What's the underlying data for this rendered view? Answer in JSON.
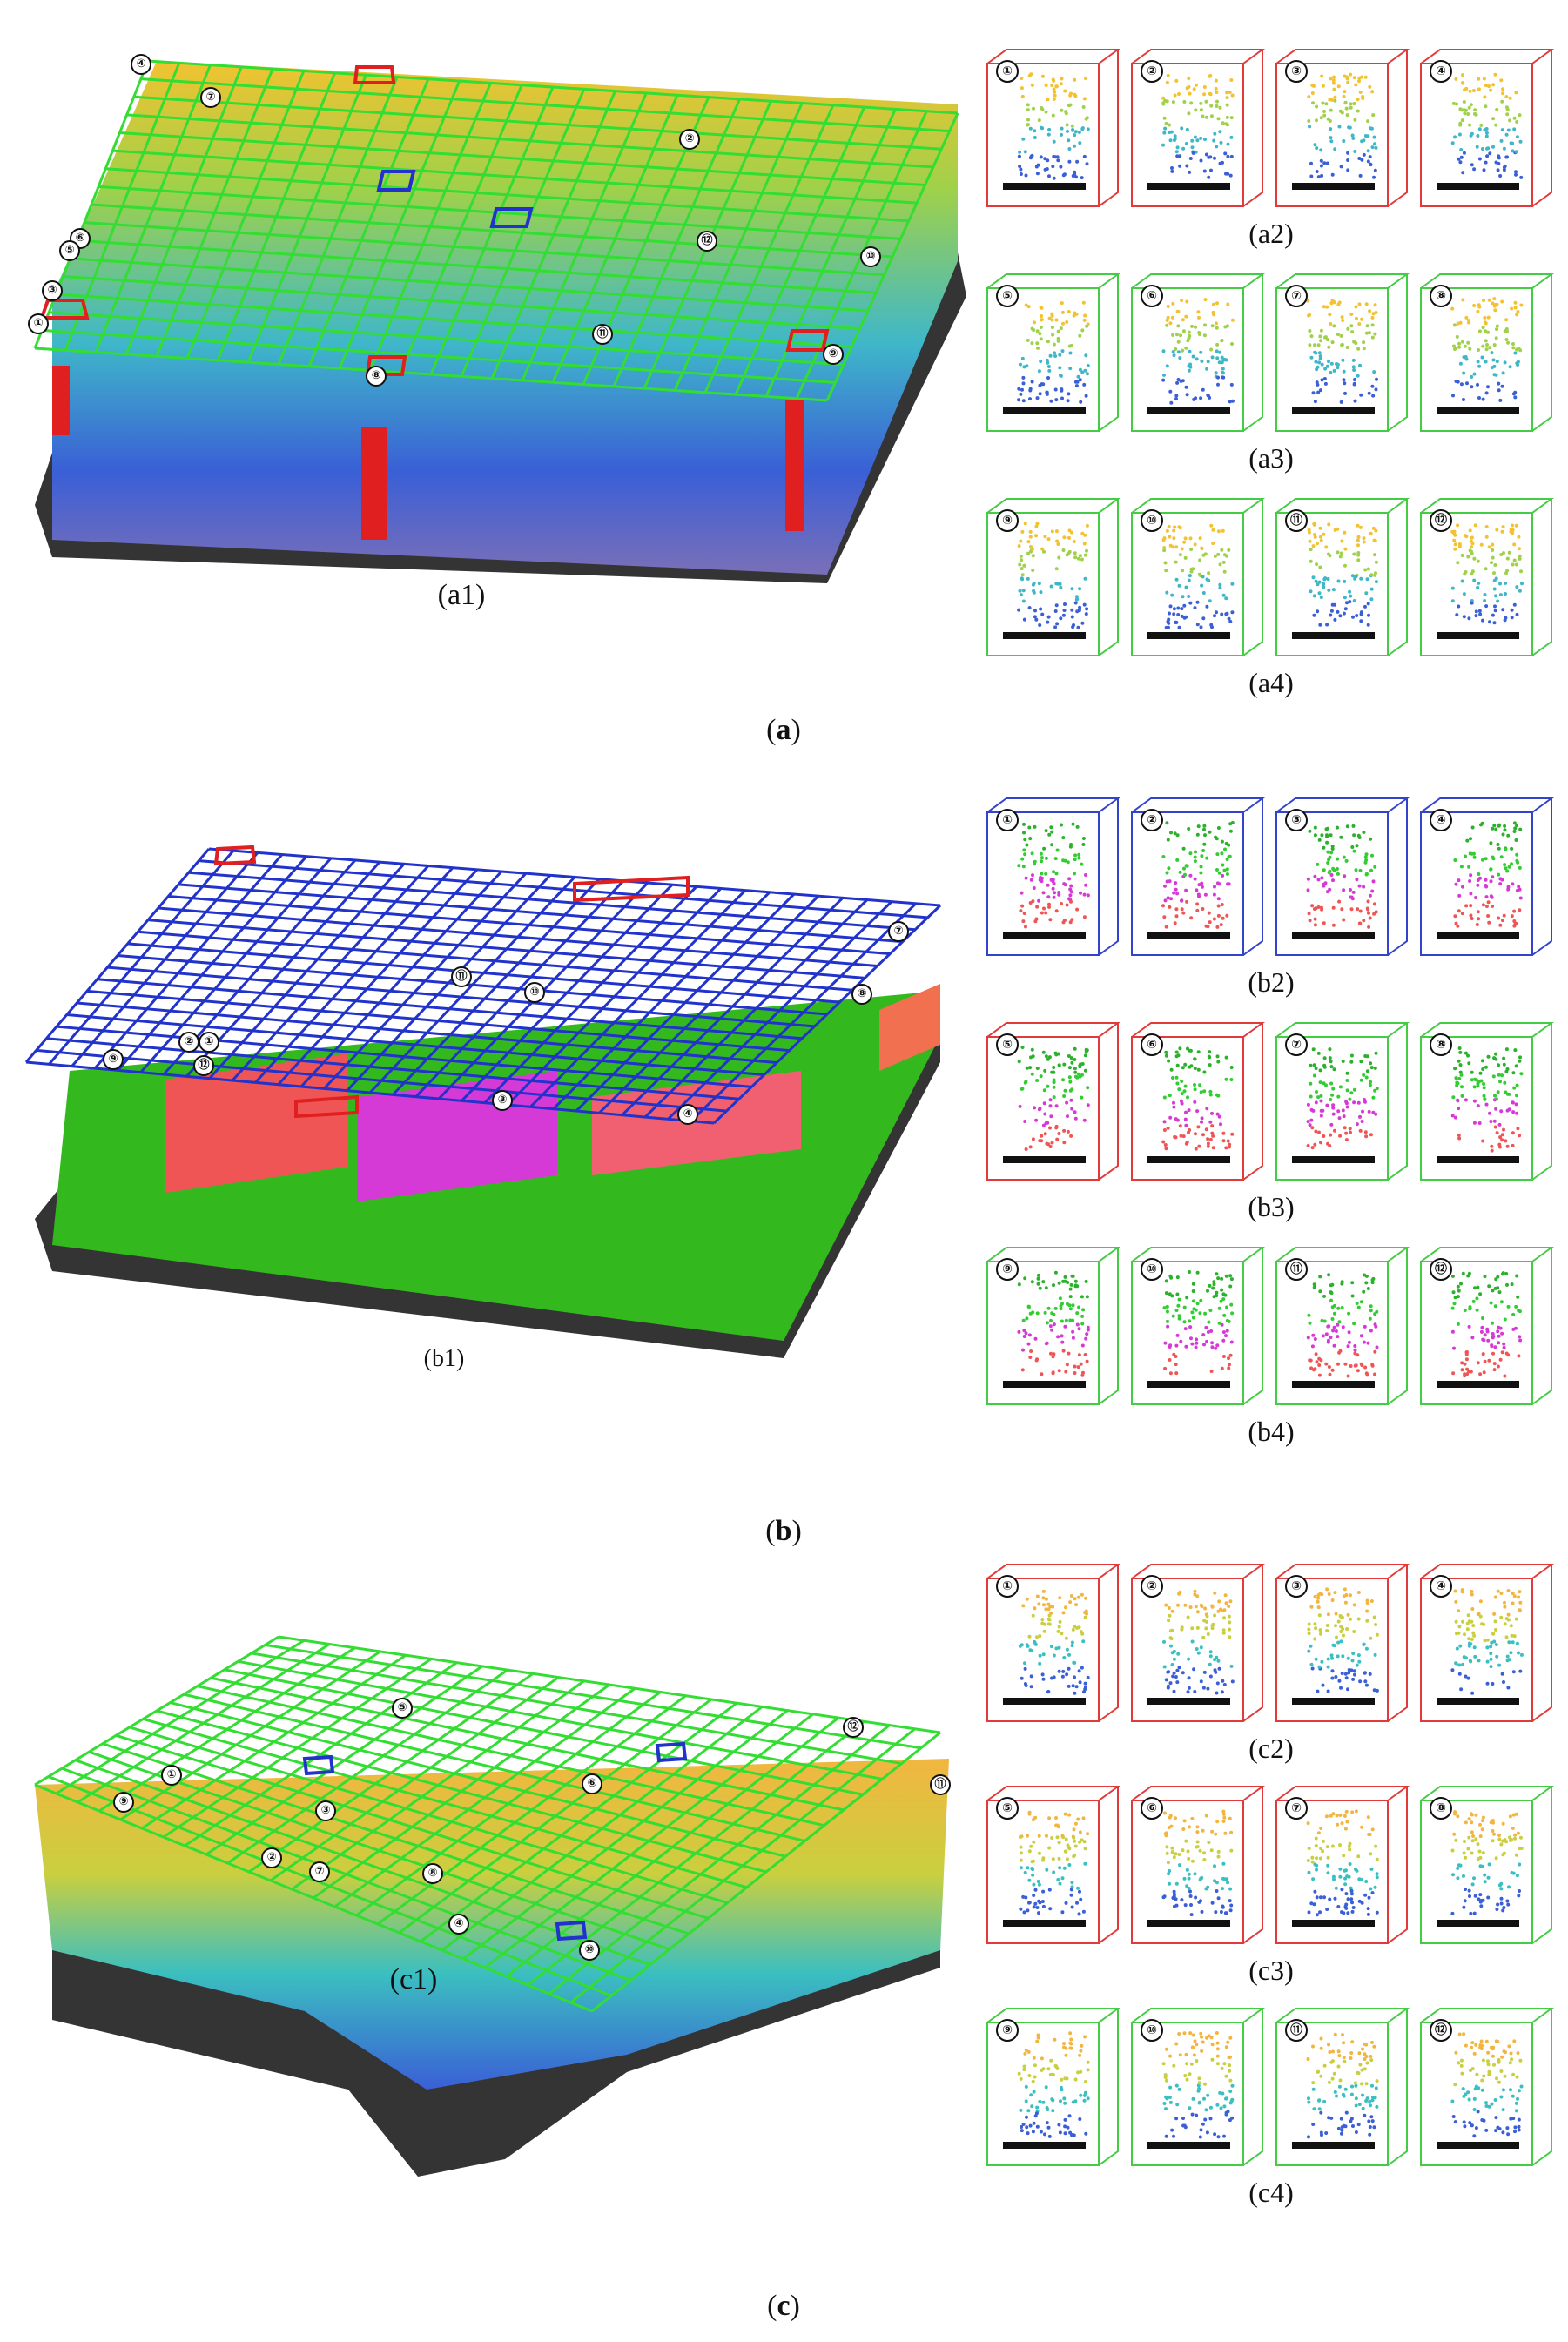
{
  "figure": {
    "panels": [
      {
        "id": "a",
        "label": "a",
        "scene_caption": "(a1)",
        "grid_color": "#33dd33",
        "markers": [
          "④",
          "⑦",
          "②",
          "⑥",
          "⑤",
          "⑫",
          "⑩",
          "③",
          "①",
          "⑪",
          "⑨",
          "⑧"
        ],
        "rows": [
          {
            "caption": "(a2)",
            "boxes": [
              {
                "num": "①",
                "color": "#e23a3a"
              },
              {
                "num": "②",
                "color": "#e23a3a"
              },
              {
                "num": "③",
                "color": "#e23a3a"
              },
              {
                "num": "④",
                "color": "#e23a3a"
              }
            ]
          },
          {
            "caption": "(a3)",
            "boxes": [
              {
                "num": "⑤",
                "color": "#44cc44"
              },
              {
                "num": "⑥",
                "color": "#44cc44"
              },
              {
                "num": "⑦",
                "color": "#44cc44"
              },
              {
                "num": "⑧",
                "color": "#44cc44"
              }
            ]
          },
          {
            "caption": "(a4)",
            "boxes": [
              {
                "num": "⑨",
                "color": "#44cc44"
              },
              {
                "num": "⑩",
                "color": "#44cc44"
              },
              {
                "num": "⑪",
                "color": "#44cc44"
              },
              {
                "num": "⑫",
                "color": "#44cc44"
              }
            ]
          }
        ]
      },
      {
        "id": "b",
        "label": "b",
        "scene_caption": "(b1)",
        "grid_color": "#2233cc",
        "markers": [
          "⑦",
          "⑪",
          "⑩",
          "⑧",
          "⑨",
          "②",
          "①",
          "⑫",
          "③",
          "④"
        ],
        "rows": [
          {
            "caption": "(b2)",
            "boxes": [
              {
                "num": "①",
                "color": "#3344cc"
              },
              {
                "num": "②",
                "color": "#3344cc"
              },
              {
                "num": "③",
                "color": "#3344cc"
              },
              {
                "num": "④",
                "color": "#3344cc"
              }
            ]
          },
          {
            "caption": "(b3)",
            "boxes": [
              {
                "num": "⑤",
                "color": "#e23a3a"
              },
              {
                "num": "⑥",
                "color": "#e23a3a"
              },
              {
                "num": "⑦",
                "color": "#44cc44"
              },
              {
                "num": "⑧",
                "color": "#44cc44"
              }
            ]
          },
          {
            "caption": "(b4)",
            "boxes": [
              {
                "num": "⑨",
                "color": "#44cc44"
              },
              {
                "num": "⑩",
                "color": "#44cc44"
              },
              {
                "num": "⑪",
                "color": "#44cc44"
              },
              {
                "num": "⑫",
                "color": "#44cc44"
              }
            ]
          }
        ]
      },
      {
        "id": "c",
        "label": "c",
        "scene_caption": "(c1)",
        "grid_color": "#33dd33",
        "markers": [
          "⑤",
          "⑫",
          "①",
          "⑥",
          "⑪",
          "⑨",
          "③",
          "②",
          "⑦",
          "⑧",
          "④",
          "⑩"
        ],
        "rows": [
          {
            "caption": "(c2)",
            "boxes": [
              {
                "num": "①",
                "color": "#e23a3a"
              },
              {
                "num": "②",
                "color": "#e23a3a"
              },
              {
                "num": "③",
                "color": "#e23a3a"
              },
              {
                "num": "④",
                "color": "#e23a3a"
              }
            ]
          },
          {
            "caption": "(c3)",
            "boxes": [
              {
                "num": "⑤",
                "color": "#e23a3a"
              },
              {
                "num": "⑥",
                "color": "#e23a3a"
              },
              {
                "num": "⑦",
                "color": "#e23a3a"
              },
              {
                "num": "⑧",
                "color": "#44cc44"
              }
            ]
          },
          {
            "caption": "(c4)",
            "boxes": [
              {
                "num": "⑨",
                "color": "#44cc44"
              },
              {
                "num": "⑩",
                "color": "#44cc44"
              },
              {
                "num": "⑪",
                "color": "#44cc44"
              },
              {
                "num": "⑫",
                "color": "#44cc44"
              }
            ]
          }
        ]
      }
    ]
  }
}
